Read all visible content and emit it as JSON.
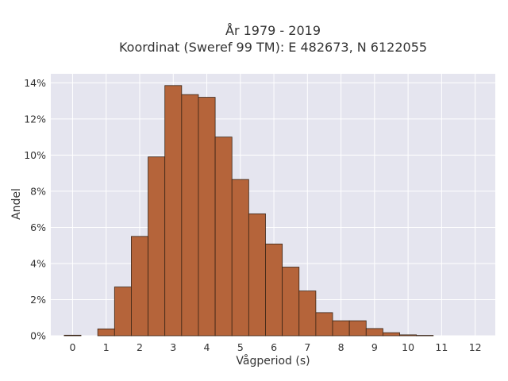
{
  "chart_data": {
    "type": "bar",
    "title_lines": [
      "År 1979 - 2019",
      "Koordinat (Sweref 99 TM): E 482673, N 6122055"
    ],
    "xlabel": "Vågperiod (s)",
    "ylabel": "Andel",
    "x_ticks": [
      "0",
      "1",
      "2",
      "3",
      "4",
      "5",
      "6",
      "7",
      "8",
      "9",
      "10",
      "11",
      "12"
    ],
    "y_ticks": [
      "0%",
      "2%",
      "4%",
      "6%",
      "8%",
      "10%",
      "12%",
      "14%"
    ],
    "xlim": [
      -0.65,
      12.6
    ],
    "ylim": [
      0,
      14.5
    ],
    "bin_width": 0.5,
    "bins": [
      {
        "x": 0.0,
        "value": 0.03
      },
      {
        "x": 1.0,
        "value": 0.38
      },
      {
        "x": 1.5,
        "value": 2.7
      },
      {
        "x": 2.0,
        "value": 5.5
      },
      {
        "x": 2.5,
        "value": 9.9
      },
      {
        "x": 3.0,
        "value": 13.85
      },
      {
        "x": 3.5,
        "value": 13.35
      },
      {
        "x": 4.0,
        "value": 13.2
      },
      {
        "x": 4.5,
        "value": 11.0
      },
      {
        "x": 5.0,
        "value": 8.65
      },
      {
        "x": 5.5,
        "value": 6.75
      },
      {
        "x": 6.0,
        "value": 5.08
      },
      {
        "x": 6.5,
        "value": 3.8
      },
      {
        "x": 7.0,
        "value": 2.48
      },
      {
        "x": 7.5,
        "value": 1.28
      },
      {
        "x": 8.0,
        "value": 0.83
      },
      {
        "x": 8.5,
        "value": 0.83
      },
      {
        "x": 9.0,
        "value": 0.4
      },
      {
        "x": 9.5,
        "value": 0.17
      },
      {
        "x": 10.0,
        "value": 0.05
      },
      {
        "x": 10.5,
        "value": 0.02
      }
    ],
    "grid": true,
    "colors": {
      "bar_fill": "#b5643a",
      "bar_edge": "#3a2516",
      "plot_bg": "#e5e5ef",
      "grid": "#ffffff"
    }
  }
}
